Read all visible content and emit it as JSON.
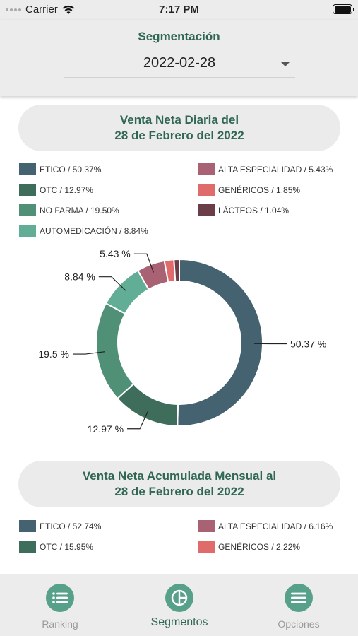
{
  "status_bar": {
    "carrier": "Carrier",
    "time": "7:17 PM"
  },
  "header": {
    "title": "Segmentación",
    "date_value": "2022-02-28"
  },
  "section_daily": {
    "title_line1": "Venta Neta Diaria del",
    "title_line2": "28 de Febrero del 2022",
    "legend": [
      {
        "label": "ETICO / 50.37%",
        "color": "#456270"
      },
      {
        "label": "OTC / 12.97%",
        "color": "#3e6e5b"
      },
      {
        "label": "NO FARMA / 19.50%",
        "color": "#4f9077"
      },
      {
        "label": "AUTOMEDICACIÓN / 8.84%",
        "color": "#62ad96"
      },
      {
        "label": "ALTA ESPECIALIDAD / 5.43%",
        "color": "#a86273"
      },
      {
        "label": "GENÉRICOS / 1.85%",
        "color": "#e06b6b"
      },
      {
        "label": "LÁCTEOS / 1.04%",
        "color": "#6b3d48"
      }
    ]
  },
  "chart_data": {
    "type": "pie",
    "labels": [
      "ETICO",
      "OTC",
      "NO FARMA",
      "AUTOMEDICACIÓN",
      "ALTA ESPECIALIDAD",
      "GENÉRICOS",
      "LÁCTEOS"
    ],
    "values": [
      50.37,
      12.97,
      19.5,
      8.84,
      5.43,
      1.85,
      1.04
    ],
    "colors": [
      "#456270",
      "#3e6e5b",
      "#4f9077",
      "#62ad96",
      "#a86273",
      "#e06b6b",
      "#6b3d48"
    ],
    "data_labels": [
      "50.37 %",
      "12.97 %",
      "19.5 %",
      "8.84 %",
      "5.43 %",
      "",
      ""
    ],
    "donut": true
  },
  "section_monthly": {
    "title_line1": "Venta Neta Acumulada Mensual al",
    "title_line2": "28 de Febrero del 2022",
    "legend": [
      {
        "label": "ETICO / 52.74%",
        "color": "#456270"
      },
      {
        "label": "OTC / 15.95%",
        "color": "#3e6e5b"
      },
      {
        "label": "ALTA ESPECIALIDAD / 6.16%",
        "color": "#a86273"
      },
      {
        "label": "GENÉRICOS / 2.22%",
        "color": "#e06b6b"
      }
    ]
  },
  "bottom_nav": {
    "items": [
      {
        "label": "Ranking",
        "icon": "list-icon"
      },
      {
        "label": "Segmentos",
        "icon": "pie-chart-icon",
        "active": true
      },
      {
        "label": "Opciones",
        "icon": "menu-icon"
      }
    ]
  }
}
